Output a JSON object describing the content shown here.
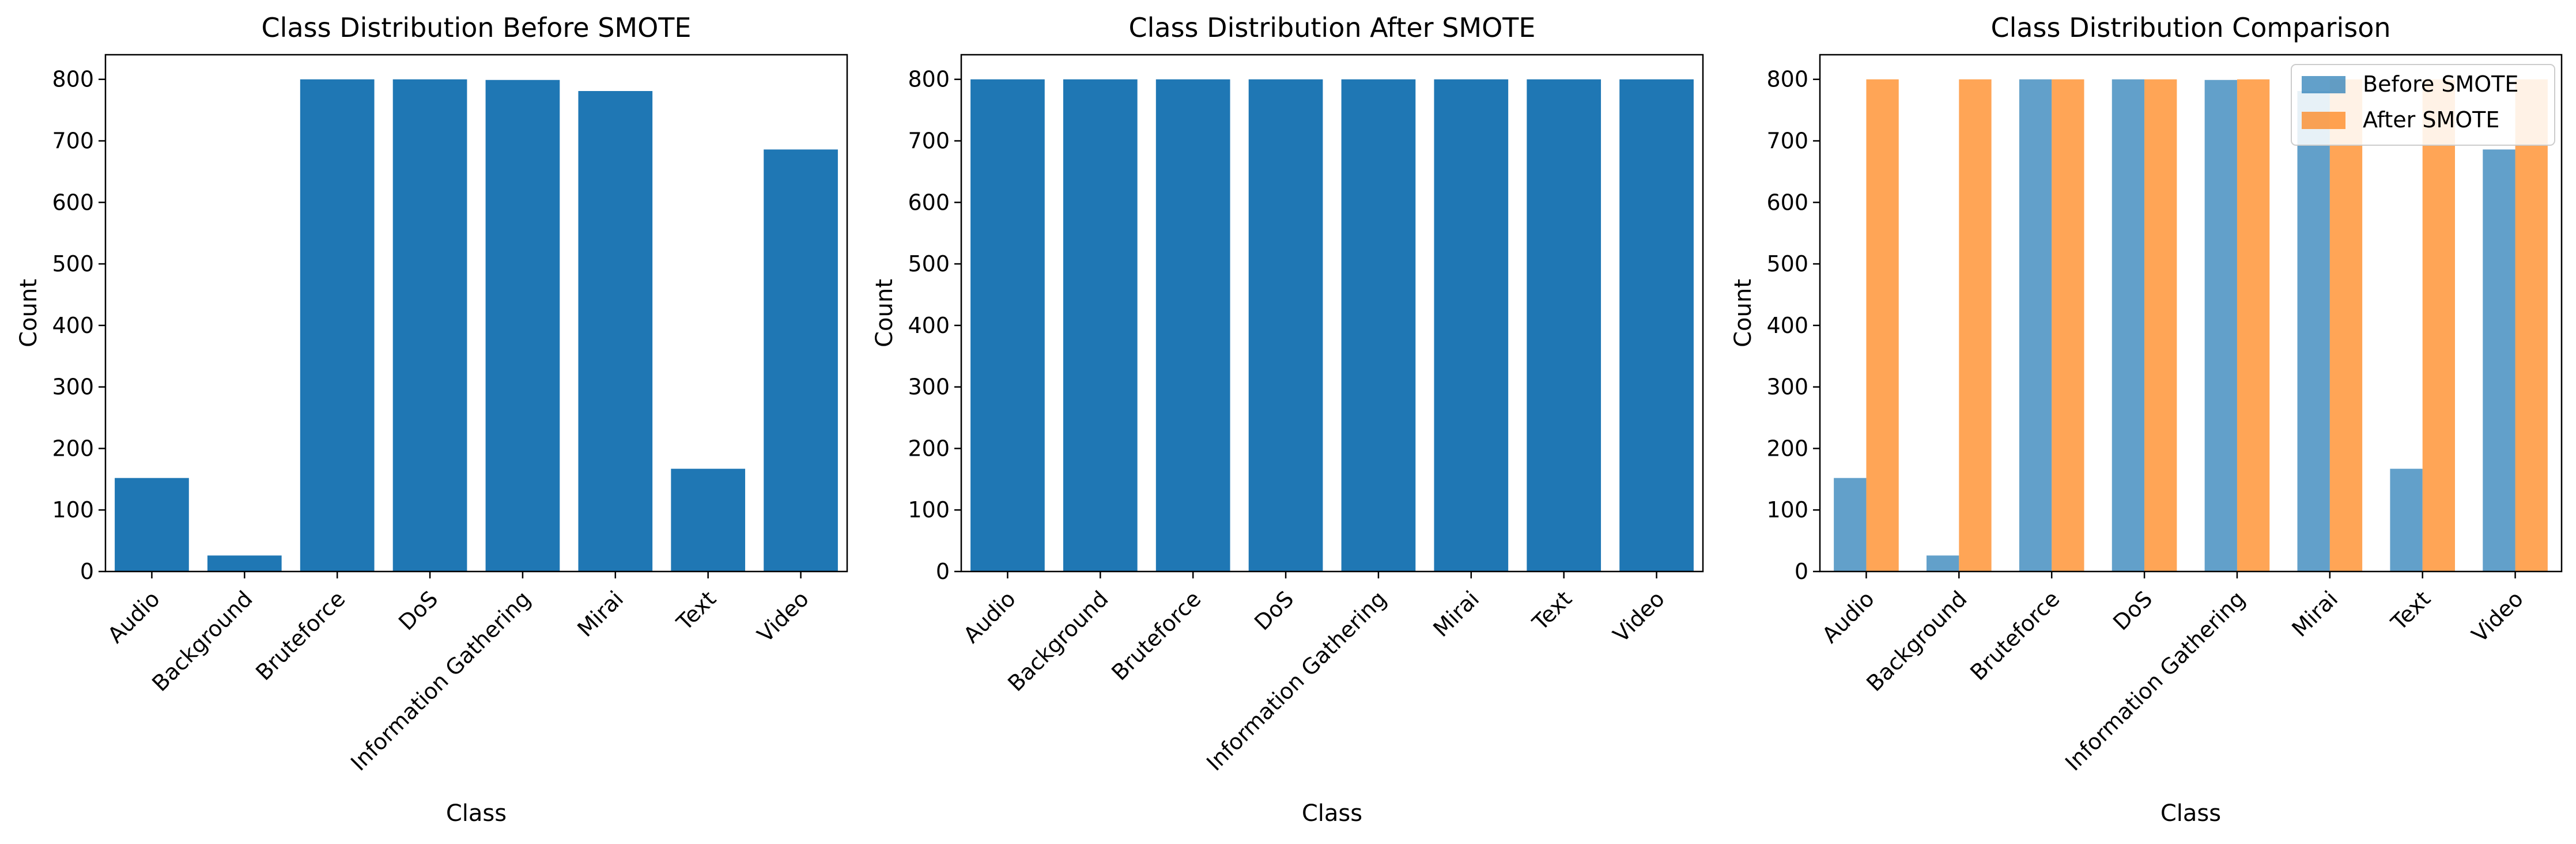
{
  "colors": {
    "bar": "#1f77b4",
    "before": "#1f77b4",
    "after": "#ff7f0e",
    "axis": "#000000"
  },
  "chart_data": [
    {
      "type": "bar",
      "title": "Class Distribution Before SMOTE",
      "xlabel": "Class",
      "ylabel": "Count",
      "categories": [
        "Audio",
        "Background",
        "Bruteforce",
        "DoS",
        "Information Gathering",
        "Mirai",
        "Text",
        "Video"
      ],
      "values": [
        152,
        26,
        800,
        800,
        799,
        781,
        167,
        686
      ],
      "ylim": [
        0,
        840
      ],
      "yticks": [
        0,
        100,
        200,
        300,
        400,
        500,
        600,
        700,
        800
      ],
      "ytick_labels": [
        "0",
        "100",
        "200",
        "300",
        "400",
        "500",
        "600",
        "700",
        "800"
      ],
      "grid": false
    },
    {
      "type": "bar",
      "title": "Class Distribution After SMOTE",
      "xlabel": "Class",
      "ylabel": "Count",
      "categories": [
        "Audio",
        "Background",
        "Bruteforce",
        "DoS",
        "Information Gathering",
        "Mirai",
        "Text",
        "Video"
      ],
      "values": [
        800,
        800,
        800,
        800,
        800,
        800,
        800,
        800
      ],
      "ylim": [
        0,
        840
      ],
      "yticks": [
        0,
        100,
        200,
        300,
        400,
        500,
        600,
        700,
        800
      ],
      "ytick_labels": [
        "0",
        "100",
        "200",
        "300",
        "400",
        "500",
        "600",
        "700",
        "800"
      ],
      "grid": false
    },
    {
      "type": "bar",
      "title": "Class Distribution Comparison",
      "xlabel": "Class",
      "ylabel": "Count",
      "categories": [
        "Audio",
        "Background",
        "Bruteforce",
        "DoS",
        "Information Gathering",
        "Mirai",
        "Text",
        "Video"
      ],
      "series": [
        {
          "name": "Before SMOTE",
          "values": [
            152,
            26,
            800,
            800,
            799,
            781,
            167,
            686
          ]
        },
        {
          "name": "After SMOTE",
          "values": [
            800,
            800,
            800,
            800,
            800,
            800,
            800,
            800
          ]
        }
      ],
      "ylim": [
        0,
        840
      ],
      "yticks": [
        0,
        100,
        200,
        300,
        400,
        500,
        600,
        700,
        800
      ],
      "ytick_labels": [
        "0",
        "100",
        "200",
        "300",
        "400",
        "500",
        "600",
        "700",
        "800"
      ],
      "legend": "top-right",
      "grid": false
    }
  ]
}
